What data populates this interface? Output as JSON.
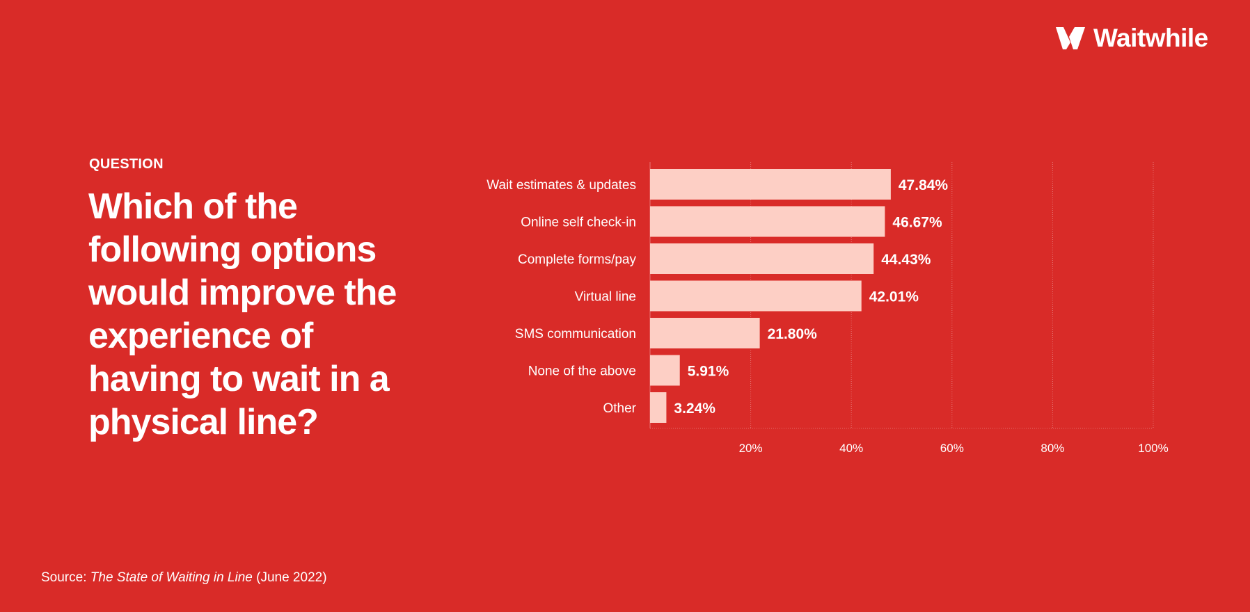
{
  "brand": {
    "name": "Waitwhile",
    "background": "#d92b28",
    "bar_color": "#fdcfc5"
  },
  "question": {
    "label": "QUESTION",
    "text": "Which of the following options would improve the experience of having to wait in a physical line?"
  },
  "source": {
    "prefix": "Source: ",
    "title": "The State of Waiting in Line",
    "suffix": " (June 2022)"
  },
  "chart_data": {
    "type": "bar",
    "orientation": "horizontal",
    "categories": [
      "Wait estimates & updates",
      "Online self check-in",
      "Complete forms/pay",
      "Virtual line",
      "SMS communication",
      "None of the above",
      "Other"
    ],
    "values": [
      47.84,
      46.67,
      44.43,
      42.01,
      21.8,
      5.91,
      3.24
    ],
    "value_labels": [
      "47.84%",
      "46.67%",
      "44.43%",
      "42.01%",
      "21.80%",
      "5.91%",
      "3.24%"
    ],
    "xlim": [
      0,
      100
    ],
    "xticks": [
      20,
      40,
      60,
      80,
      100
    ],
    "xtick_labels": [
      "20%",
      "40%",
      "60%",
      "80%",
      "100%"
    ],
    "grid": true,
    "title": "",
    "xlabel": "",
    "ylabel": ""
  }
}
